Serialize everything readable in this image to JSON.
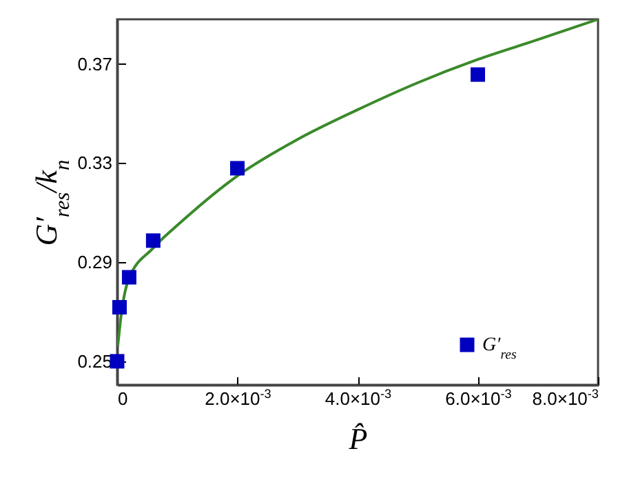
{
  "chart_data": {
    "type": "scatter",
    "xlabel": "P̂",
    "ylabel": "G′$_{res}$/k$_{n}$",
    "xlim": [
      0,
      0.008
    ],
    "ylim": [
      0.2405,
      0.388
    ],
    "xticks": [
      0,
      {
        "value": 0.002,
        "label": "2.0×10$^{-3}$"
      },
      {
        "value": 0.004,
        "label": "4.0×10$^{-3}$"
      },
      {
        "value": 0.006,
        "label": "6.0×10$^{-3}$"
      },
      {
        "value": 0.008,
        "label": "8.0×10$^{-3}$"
      }
    ],
    "yticks": [
      0.25,
      0.29,
      0.33,
      0.37
    ],
    "grid": false,
    "legend": "bottom right",
    "series": [
      {
        "name": "G′$_{res}$",
        "marker": "square",
        "color": "#0000c0",
        "x": [
          0,
          4e-05,
          0.0002,
          0.0006,
          0.002,
          0.006
        ],
        "values": [
          0.25,
          0.2718,
          0.2839,
          0.2987,
          0.3279,
          0.3657
        ]
      },
      {
        "type": "line",
        "color": "#3a8a2a",
        "x": [
          1e-05,
          6.4e-05,
          0.00019,
          0.0006,
          0.0011,
          0.002,
          0.003,
          0.004,
          0.005,
          0.006,
          0.007,
          0.008
        ],
        "values": [
          0.256,
          0.268,
          0.283,
          0.2957,
          0.307,
          0.3248,
          0.3395,
          0.3515,
          0.3624,
          0.3718,
          0.3798,
          0.388
        ]
      }
    ]
  }
}
